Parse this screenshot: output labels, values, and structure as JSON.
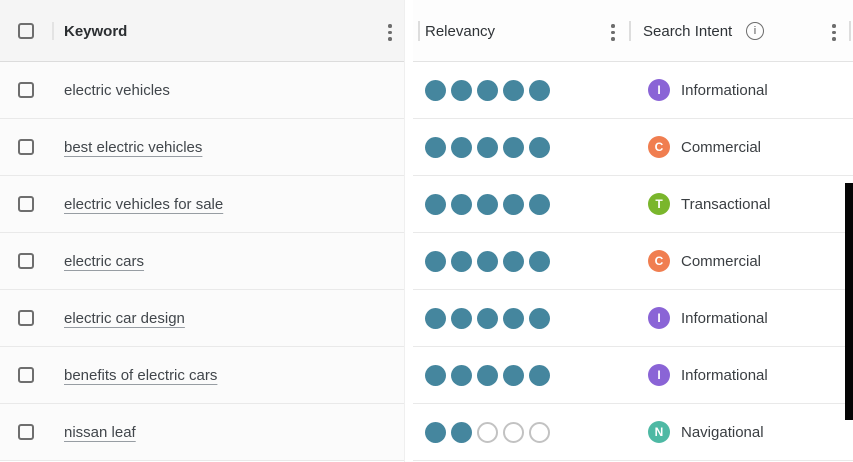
{
  "header": {
    "keyword_label": "Keyword",
    "relevancy_label": "Relevancy",
    "search_intent_label": "Search Intent",
    "info_icon_glyph": "i"
  },
  "colors": {
    "relevancy_filled": "#45869e",
    "relevancy_empty_border": "#c2c2c2",
    "informational": "#8a64d6",
    "commercial": "#f07e50",
    "transactional": "#7ab62c",
    "navigational": "#4eb9a4"
  },
  "relevancy_max": 5,
  "rows": [
    {
      "keyword": "electric vehicles",
      "link": false,
      "checked": false,
      "relevancy": 5,
      "intent": "Informational",
      "intent_letter": "I",
      "intent_type": "informational"
    },
    {
      "keyword": "best electric vehicles",
      "link": true,
      "checked": false,
      "relevancy": 5,
      "intent": "Commercial",
      "intent_letter": "C",
      "intent_type": "commercial"
    },
    {
      "keyword": "electric vehicles for sale",
      "link": true,
      "checked": false,
      "relevancy": 5,
      "intent": "Transactional",
      "intent_letter": "T",
      "intent_type": "transactional"
    },
    {
      "keyword": "electric cars",
      "link": true,
      "checked": false,
      "relevancy": 5,
      "intent": "Commercial",
      "intent_letter": "C",
      "intent_type": "commercial"
    },
    {
      "keyword": "electric car design",
      "link": true,
      "checked": false,
      "relevancy": 5,
      "intent": "Informational",
      "intent_letter": "I",
      "intent_type": "informational"
    },
    {
      "keyword": "benefits of electric cars",
      "link": true,
      "checked": false,
      "relevancy": 5,
      "intent": "Informational",
      "intent_letter": "I",
      "intent_type": "informational"
    },
    {
      "keyword": "nissan leaf",
      "link": true,
      "checked": false,
      "relevancy": 2,
      "intent": "Navigational",
      "intent_letter": "N",
      "intent_type": "navigational"
    }
  ]
}
